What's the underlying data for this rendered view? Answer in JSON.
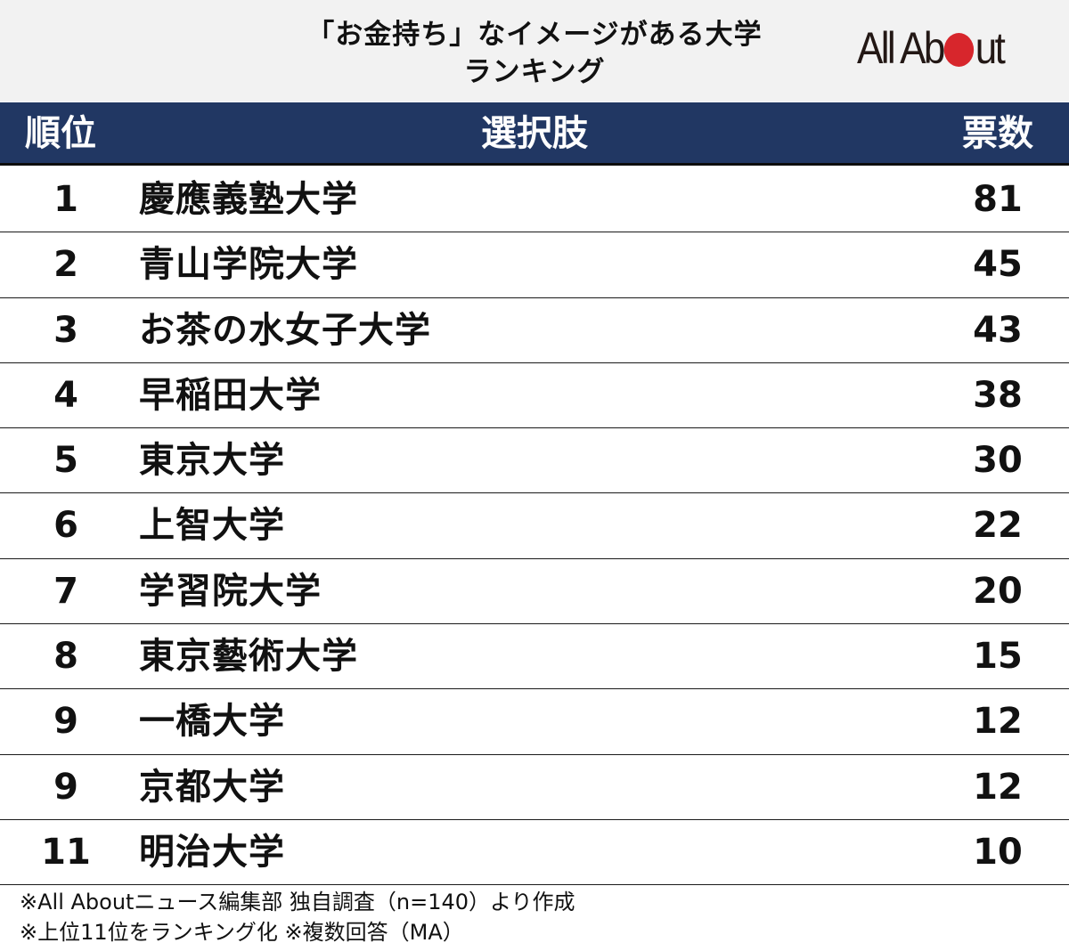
{
  "title": {
    "line1": "「お金持ち」なイメージがある大学",
    "line2": "ランキング"
  },
  "logo": {
    "text_before": "All Ab",
    "text_after": "ut",
    "accent_color": "#d7262c"
  },
  "header": {
    "rank": "順位",
    "choice": "選択肢",
    "votes": "票数",
    "background_color": "#213763"
  },
  "rows": [
    {
      "rank": "1",
      "name": "慶應義塾大学",
      "votes": "81"
    },
    {
      "rank": "2",
      "name": "青山学院大学",
      "votes": "45"
    },
    {
      "rank": "3",
      "name": "お茶の水女子大学",
      "votes": "43"
    },
    {
      "rank": "4",
      "name": "早稲田大学",
      "votes": "38"
    },
    {
      "rank": "5",
      "name": "東京大学",
      "votes": "30"
    },
    {
      "rank": "6",
      "name": "上智大学",
      "votes": "22"
    },
    {
      "rank": "7",
      "name": "学習院大学",
      "votes": "20"
    },
    {
      "rank": "8",
      "name": "東京藝術大学",
      "votes": "15"
    },
    {
      "rank": "9",
      "name": "一橋大学",
      "votes": "12"
    },
    {
      "rank": "9",
      "name": "京都大学",
      "votes": "12"
    },
    {
      "rank": "11",
      "name": "明治大学",
      "votes": "10"
    }
  ],
  "footer": {
    "note1": "※All Aboutニュース編集部 独自調査（n=140）より作成",
    "note2": "※上位11位をランキング化 ※複数回答（MA）"
  },
  "chart_data": {
    "type": "table",
    "title": "「お金持ち」なイメージがある大学ランキング",
    "columns": [
      "順位",
      "選択肢",
      "票数"
    ],
    "rows": [
      [
        1,
        "慶應義塾大学",
        81
      ],
      [
        2,
        "青山学院大学",
        45
      ],
      [
        3,
        "お茶の水女子大学",
        43
      ],
      [
        4,
        "早稲田大学",
        38
      ],
      [
        5,
        "東京大学",
        30
      ],
      [
        6,
        "上智大学",
        22
      ],
      [
        7,
        "学習院大学",
        20
      ],
      [
        8,
        "東京藝術大学",
        15
      ],
      [
        9,
        "一橋大学",
        12
      ],
      [
        9,
        "京都大学",
        12
      ],
      [
        11,
        "明治大学",
        10
      ]
    ],
    "notes": [
      "※All Aboutニュース編集部 独自調査（n=140）より作成",
      "※上位11位をランキング化 ※複数回答（MA）"
    ]
  }
}
